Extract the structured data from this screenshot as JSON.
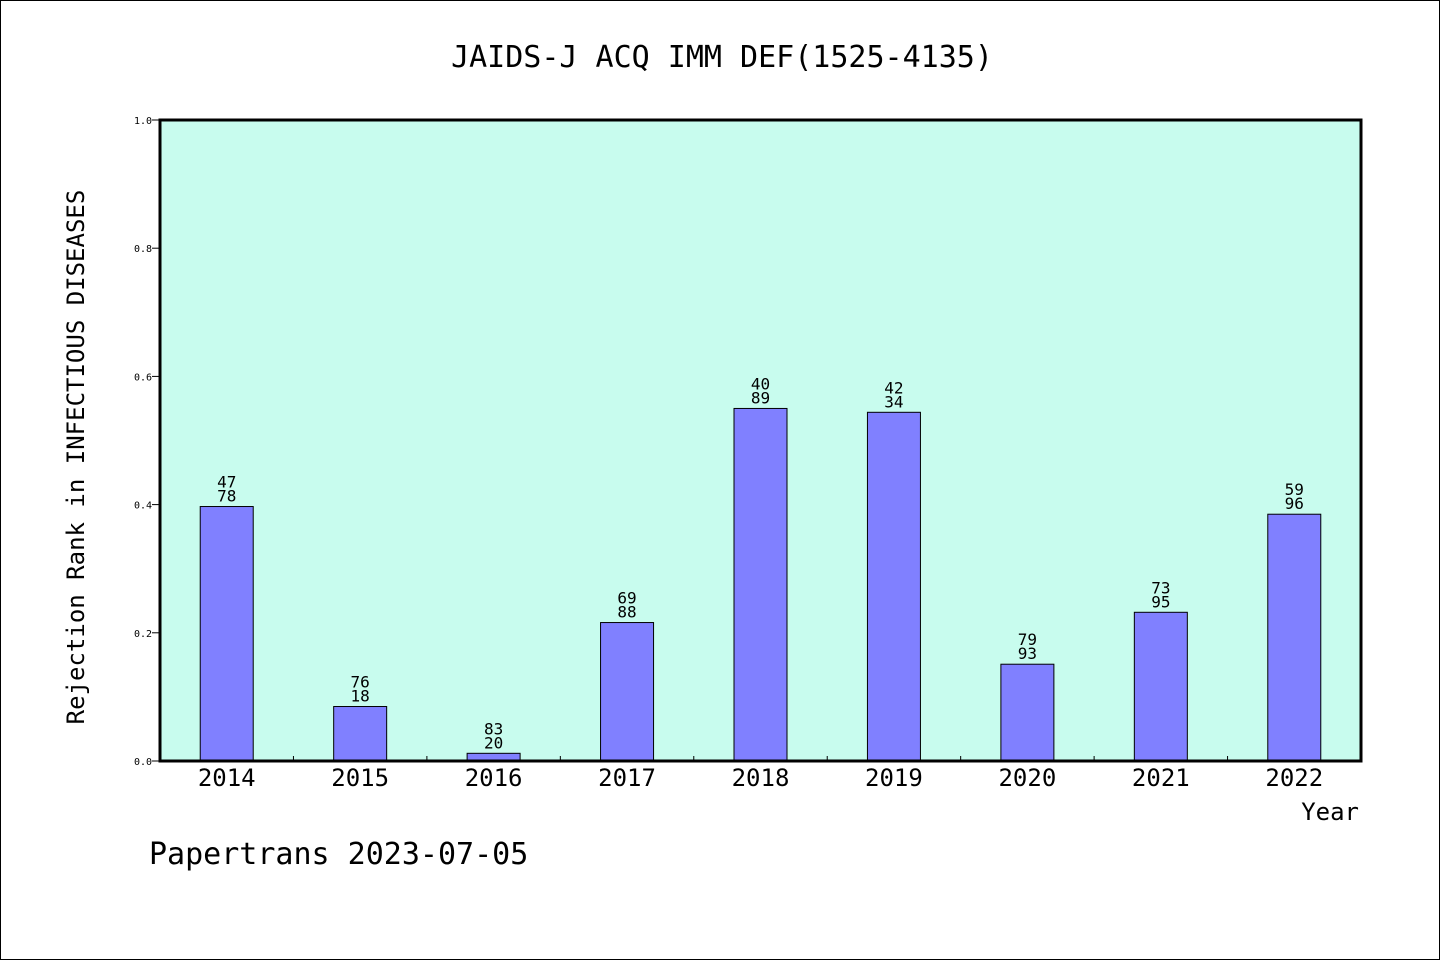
{
  "chart_data": {
    "type": "bar",
    "title": "JAIDS-J ACQ IMM DEF(1525-4135)",
    "xlabel": "Year",
    "ylabel": "Rejection Rank in INFECTIOUS DISEASES",
    "ylim": [
      0,
      1.0
    ],
    "yticks": [
      "0.0",
      "0.2",
      "0.4",
      "0.6",
      "0.8",
      "1.0"
    ],
    "categories": [
      "2014",
      "2015",
      "2016",
      "2017",
      "2018",
      "2019",
      "2020",
      "2021",
      "2022"
    ],
    "values": [
      0.397,
      0.085,
      0.012,
      0.216,
      0.55,
      0.544,
      0.151,
      0.232,
      0.385
    ],
    "bar_labels": [
      [
        "47",
        "78"
      ],
      [
        "76",
        "18"
      ],
      [
        "83",
        "20"
      ],
      [
        "69",
        "88"
      ],
      [
        "40",
        "89"
      ],
      [
        "42",
        "34"
      ],
      [
        "79",
        "93"
      ],
      [
        "73",
        "95"
      ],
      [
        "59",
        "96"
      ]
    ],
    "grid": false,
    "colors": {
      "plot_background": "#c8fcee",
      "bar_fill": "#8080ff",
      "bar_edge": "#000000"
    }
  },
  "footer": "Papertrans 2023-07-05"
}
